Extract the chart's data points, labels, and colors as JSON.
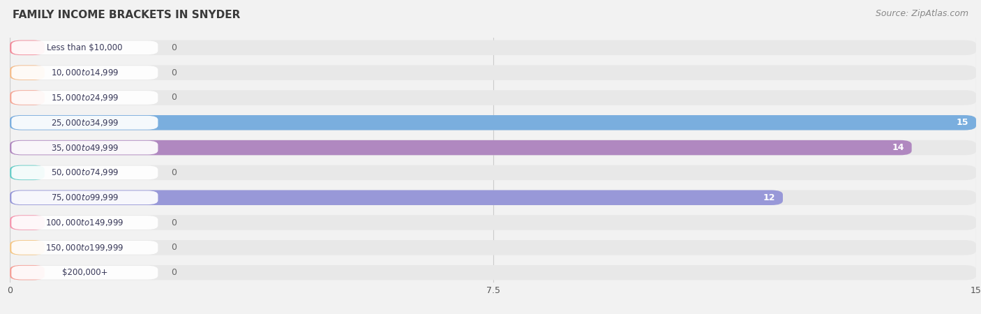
{
  "title": "FAMILY INCOME BRACKETS IN SNYDER",
  "source": "Source: ZipAtlas.com",
  "categories": [
    "Less than $10,000",
    "$10,000 to $14,999",
    "$15,000 to $24,999",
    "$25,000 to $34,999",
    "$35,000 to $49,999",
    "$50,000 to $74,999",
    "$75,000 to $99,999",
    "$100,000 to $149,999",
    "$150,000 to $199,999",
    "$200,000+"
  ],
  "values": [
    0,
    0,
    0,
    15,
    14,
    0,
    12,
    0,
    0,
    0
  ],
  "bar_colors": [
    "#f28b9b",
    "#f5be8e",
    "#f5a898",
    "#7aaede",
    "#b088c0",
    "#68cec8",
    "#9898d8",
    "#f598b0",
    "#f5c888",
    "#f5a098"
  ],
  "label_bg_colors": [
    "#f9d0d8",
    "#fce8cc",
    "#fad8d0",
    "#c8dff5",
    "#ddc8e8",
    "#b8ece8",
    "#c8c8ec",
    "#fad0e0",
    "#fce8cc",
    "#fad0cc"
  ],
  "xlim": [
    0,
    15
  ],
  "xticks": [
    0,
    7.5,
    15
  ],
  "bg_color": "#f2f2f2",
  "row_bg_color": "#e8e8e8",
  "title_fontsize": 11,
  "source_fontsize": 9,
  "label_fontsize": 8.5,
  "value_fontsize": 9
}
